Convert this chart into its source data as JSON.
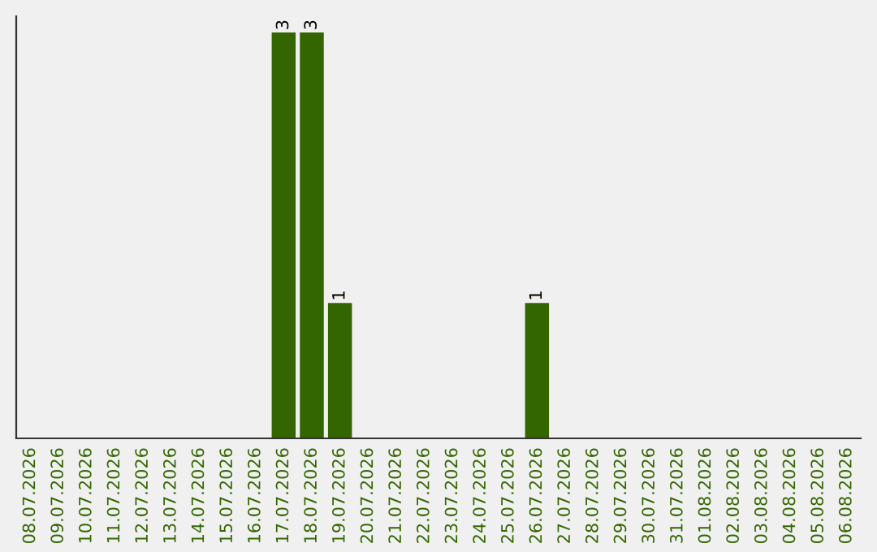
{
  "chart_data": {
    "type": "bar",
    "categories": [
      "08.07.2026",
      "09.07.2026",
      "10.07.2026",
      "11.07.2026",
      "12.07.2026",
      "13.07.2026",
      "14.07.2026",
      "15.07.2026",
      "16.07.2026",
      "17.07.2026",
      "18.07.2026",
      "19.07.2026",
      "20.07.2026",
      "21.07.2026",
      "22.07.2026",
      "23.07.2026",
      "24.07.2026",
      "25.07.2026",
      "26.07.2026",
      "27.07.2026",
      "28.07.2026",
      "29.07.2026",
      "30.07.2026",
      "31.07.2026",
      "01.08.2026",
      "02.08.2026",
      "03.08.2026",
      "04.08.2026",
      "05.08.2026",
      "06.08.2026"
    ],
    "values": [
      0,
      0,
      0,
      0,
      0,
      0,
      0,
      0,
      0,
      3,
      3,
      1,
      0,
      0,
      0,
      0,
      0,
      0,
      1,
      0,
      0,
      0,
      0,
      0,
      0,
      0,
      0,
      0,
      0,
      0
    ],
    "value_labels": [
      null,
      null,
      null,
      null,
      null,
      null,
      null,
      null,
      null,
      "3",
      "3",
      "1",
      null,
      null,
      null,
      null,
      null,
      null,
      "1",
      null,
      null,
      null,
      null,
      null,
      null,
      null,
      null,
      null,
      null,
      null
    ],
    "color": "#336600",
    "ylim": [
      0,
      3.12
    ],
    "tick_labels": "x",
    "grid": false
  }
}
